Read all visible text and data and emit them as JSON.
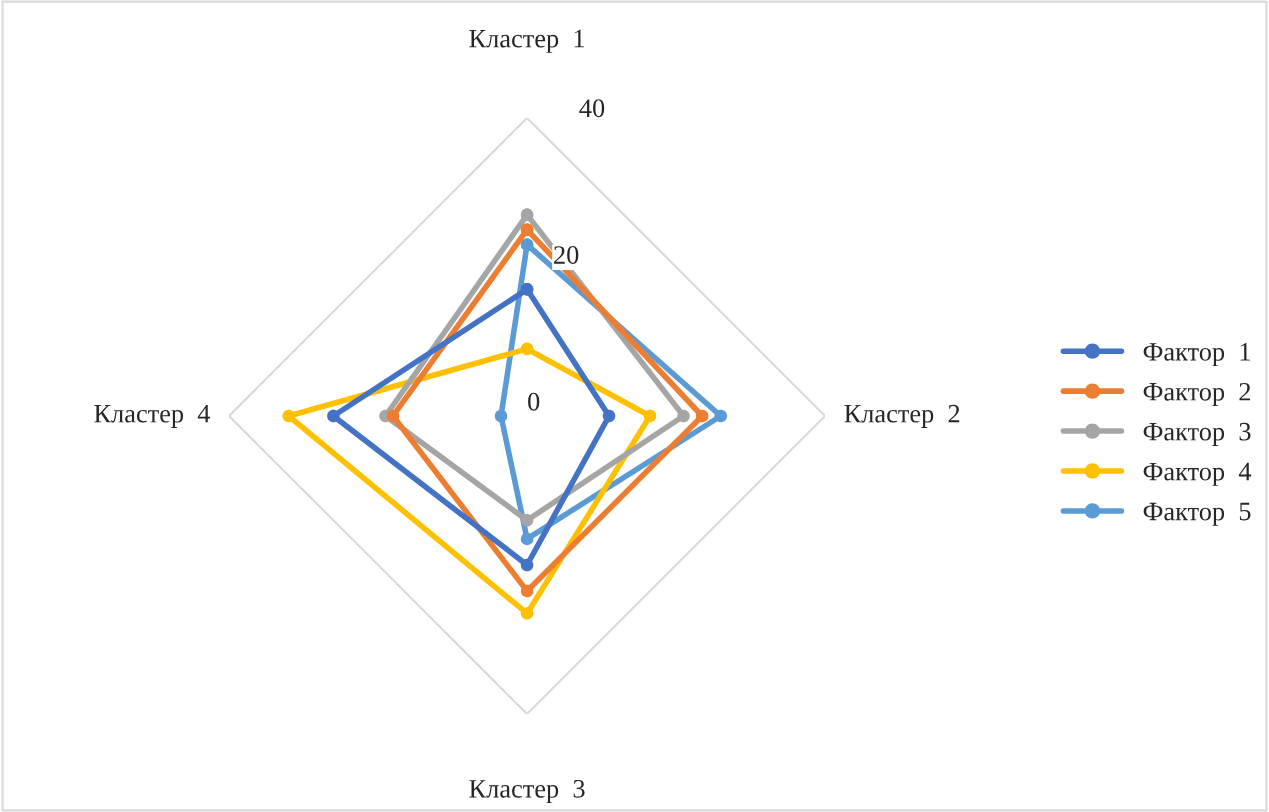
{
  "chart_data": {
    "type": "radar",
    "categories": [
      "Кластер  1",
      "Кластер  2",
      "Кластер  3",
      "Кластер  4"
    ],
    "ylim": [
      0,
      40
    ],
    "yticks": [
      0,
      20,
      40
    ],
    "marker": "circle",
    "legend": "right",
    "series": [
      {
        "name": "Фактор  1",
        "color": "#4472c4",
        "values": [
          17,
          11,
          20,
          26
        ]
      },
      {
        "name": "Фактор  2",
        "color": "#ed7d31",
        "values": [
          25,
          23.5,
          23.5,
          18
        ]
      },
      {
        "name": "Фактор  3",
        "color": "#a5a5a5",
        "values": [
          27,
          21,
          14,
          19
        ]
      },
      {
        "name": "Фактор  4",
        "color": "#ffc000",
        "values": [
          9,
          16.5,
          26.5,
          32
        ]
      },
      {
        "name": "Фактор  5",
        "color": "#5b9bd5",
        "values": [
          23,
          26,
          16.5,
          3.5
        ]
      }
    ]
  }
}
